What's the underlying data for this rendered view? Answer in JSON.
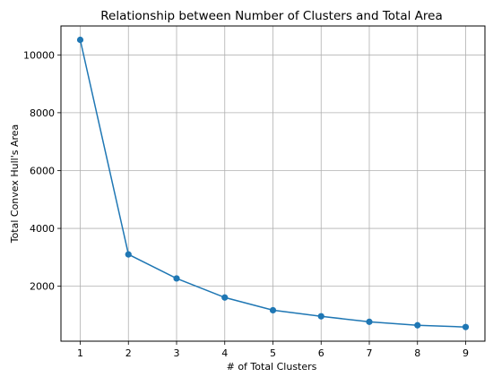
{
  "chart_data": {
    "type": "line",
    "title": "Relationship between Number of Clusters and Total Area",
    "xlabel": "# of Total Clusters",
    "ylabel": "Total Convex Hull's Area",
    "x": [
      1,
      2,
      3,
      4,
      5,
      6,
      7,
      8,
      9
    ],
    "series": [
      {
        "values": [
          10520,
          3100,
          2270,
          1610,
          1170,
          960,
          770,
          650,
          590
        ]
      }
    ],
    "xticks": [
      1,
      2,
      3,
      4,
      5,
      6,
      7,
      8,
      9
    ],
    "yticks": [
      2000,
      4000,
      6000,
      8000,
      10000
    ],
    "xlim": [
      0.6,
      9.4
    ],
    "ylim": [
      100,
      11000
    ],
    "grid": true,
    "color": "#1f77b4",
    "marker": "circle"
  }
}
